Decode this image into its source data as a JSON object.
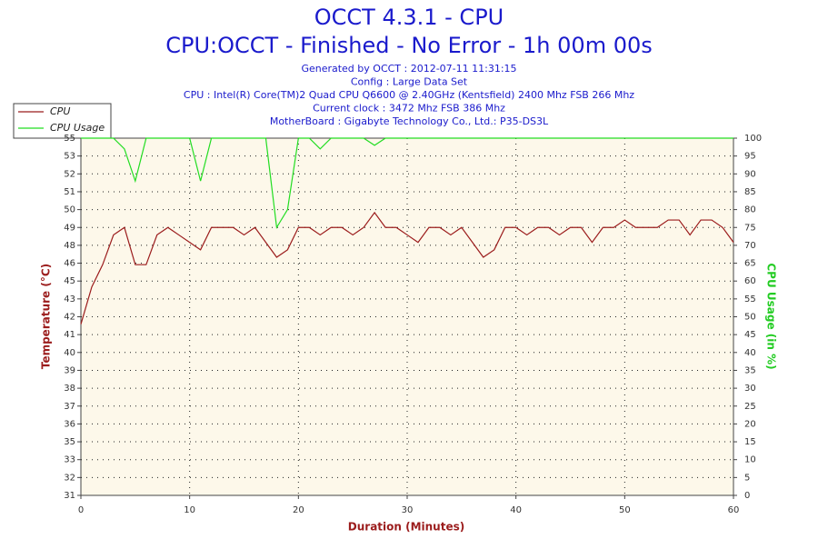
{
  "chart_data": {
    "type": "line",
    "title": "OCCT 4.3.1 - CPU",
    "subtitle": "CPU:OCCT - Finished - No Error - 1h 00m 00s",
    "info": [
      "Generated by OCCT : 2012-07-11 11:31:15",
      "Config : Large Data Set",
      "CPU : Intel(R) Core(TM)2 Quad CPU Q6600 @ 2.40GHz (Kentsfield) 2400 Mhz FSB 266 Mhz",
      "Current clock : 3472 Mhz FSB 386 Mhz",
      "MotherBoard : Gigabyte Technology Co., Ltd.: P35-DS3L"
    ],
    "x_label": "Duration (Minutes)",
    "y_label": "Temperature (°C)",
    "y2_label": "CPU Usage (in %)",
    "x": [
      0,
      1,
      2,
      3,
      4,
      5,
      6,
      7,
      8,
      9,
      10,
      11,
      12,
      13,
      14,
      15,
      16,
      17,
      18,
      19,
      20,
      21,
      22,
      23,
      24,
      25,
      26,
      27,
      28,
      29,
      30,
      31,
      32,
      33,
      34,
      35,
      36,
      37,
      38,
      39,
      40,
      41,
      42,
      43,
      44,
      45,
      46,
      47,
      48,
      49,
      50,
      51,
      52,
      53,
      54,
      55,
      56,
      57,
      58,
      59,
      60
    ],
    "series": [
      {
        "name": "CPU",
        "color": "#9b1c1c",
        "axis": "y",
        "values": [
          42.5,
          45,
          46.5,
          48.5,
          49,
          46.5,
          46.5,
          48.5,
          49,
          48.5,
          48,
          47.5,
          49,
          49,
          49,
          48.5,
          49,
          48,
          47,
          47.5,
          49,
          49,
          48.5,
          49,
          49,
          48.5,
          49,
          50,
          49,
          49,
          48.5,
          48,
          49,
          49,
          48.5,
          49,
          48,
          47,
          47.5,
          49,
          49,
          48.5,
          49,
          49,
          48.5,
          49,
          49,
          48,
          49,
          49,
          49.5,
          49,
          49,
          49,
          49.5,
          49.5,
          48.5,
          49.5,
          49.5,
          49,
          48
        ]
      },
      {
        "name": "CPU Usage",
        "color": "#22dd22",
        "axis": "y2",
        "values": [
          100,
          100,
          100,
          100,
          97,
          88,
          100,
          100,
          100,
          100,
          100,
          88,
          100,
          100,
          100,
          100,
          100,
          100,
          75,
          80,
          100,
          100,
          97,
          100,
          100,
          100,
          100,
          98,
          100,
          100,
          100,
          100,
          100,
          100,
          100,
          100,
          100,
          100,
          100,
          100,
          100,
          100,
          100,
          100,
          100,
          100,
          100,
          100,
          100,
          100,
          100,
          100,
          100,
          100,
          100,
          100,
          100,
          100,
          100,
          100,
          100
        ]
      }
    ],
    "xlim": [
      0,
      60
    ],
    "xticks": [
      0,
      10,
      20,
      30,
      40,
      50,
      60
    ],
    "ylim": [
      31,
      55
    ],
    "yticks": [
      31,
      32,
      33,
      35,
      36,
      37,
      38,
      39,
      40,
      41,
      42,
      43,
      45,
      46,
      48,
      49,
      50,
      51,
      52,
      53,
      55
    ],
    "y2lim": [
      0,
      100
    ],
    "y2ticks": [
      0,
      5,
      10,
      15,
      20,
      25,
      30,
      35,
      40,
      45,
      50,
      55,
      60,
      65,
      70,
      75,
      80,
      85,
      90,
      95,
      100
    ],
    "grid": true,
    "legend": "top-left"
  }
}
